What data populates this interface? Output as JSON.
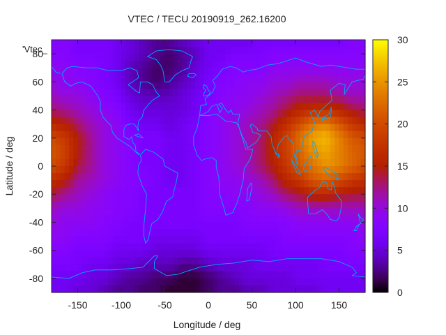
{
  "chart_data": {
    "type": "heatmap",
    "title": "VTEC / TECU 20190919_262.16200",
    "xlabel": "Longitude / deg",
    "ylabel": "Latitude / deg",
    "key_label": "'Vtec_",
    "xlim": [
      -180,
      180
    ],
    "ylim": [
      -90,
      90
    ],
    "x_ticks": [
      -150,
      -100,
      -50,
      0,
      50,
      100,
      150
    ],
    "y_ticks": [
      -80,
      -60,
      -40,
      -20,
      0,
      20,
      40,
      60,
      80
    ],
    "colorbar": {
      "min": 0,
      "max": 30,
      "ticks": [
        0,
        5,
        10,
        15,
        20,
        25,
        30
      ],
      "palette": "black-purple-red-orange-yellow"
    },
    "grid_lon": [
      -180,
      -165,
      -150,
      -135,
      -120,
      -105,
      -90,
      -75,
      -60,
      -45,
      -30,
      -15,
      0,
      15,
      30,
      45,
      60,
      75,
      90,
      105,
      120,
      135,
      150,
      165,
      180
    ],
    "grid_lat": [
      87.5,
      80,
      70,
      60,
      50,
      40,
      30,
      20,
      10,
      0,
      -10,
      -20,
      -30,
      -40,
      -50,
      -60,
      -70,
      -80,
      -87.5
    ],
    "vtec": [
      [
        8,
        8,
        7,
        7,
        7,
        6,
        5,
        4,
        3,
        3,
        4,
        5,
        6,
        6,
        6,
        6,
        7,
        7,
        7,
        7,
        7,
        7,
        7,
        8,
        8
      ],
      [
        8,
        8,
        7,
        7,
        7,
        6,
        5,
        4,
        3,
        2,
        3,
        4,
        6,
        6,
        7,
        7,
        7,
        8,
        8,
        8,
        8,
        8,
        8,
        8,
        8
      ],
      [
        9,
        9,
        8,
        8,
        7,
        6,
        4,
        3,
        2,
        2,
        3,
        5,
        6,
        7,
        8,
        8,
        8,
        9,
        9,
        9,
        9,
        9,
        9,
        9,
        9
      ],
      [
        10,
        9,
        9,
        8,
        7,
        6,
        4,
        3,
        2,
        3,
        4,
        5,
        7,
        8,
        8,
        9,
        9,
        10,
        10,
        11,
        11,
        11,
        10,
        10,
        10
      ],
      [
        11,
        10,
        10,
        9,
        8,
        7,
        5,
        4,
        4,
        4,
        5,
        6,
        7,
        8,
        9,
        9,
        10,
        11,
        12,
        13,
        13,
        13,
        12,
        11,
        11
      ],
      [
        13,
        12,
        11,
        10,
        9,
        8,
        6,
        5,
        5,
        5,
        5,
        6,
        8,
        9,
        9,
        10,
        11,
        12,
        14,
        16,
        17,
        17,
        16,
        14,
        13
      ],
      [
        16,
        15,
        13,
        11,
        10,
        9,
        7,
        6,
        6,
        5,
        6,
        7,
        8,
        9,
        10,
        11,
        12,
        14,
        17,
        20,
        23,
        24,
        21,
        18,
        16
      ],
      [
        20,
        18,
        15,
        12,
        10,
        9,
        8,
        7,
        7,
        6,
        6,
        7,
        8,
        9,
        10,
        11,
        13,
        16,
        19,
        23,
        26,
        27,
        24,
        21,
        20
      ],
      [
        21,
        19,
        15,
        12,
        10,
        9,
        8,
        7,
        7,
        6,
        6,
        7,
        8,
        9,
        10,
        11,
        13,
        16,
        19,
        22,
        25,
        26,
        24,
        22,
        21
      ],
      [
        20,
        18,
        14,
        12,
        10,
        9,
        8,
        7,
        7,
        6,
        6,
        7,
        8,
        9,
        10,
        11,
        13,
        15,
        18,
        21,
        23,
        25,
        24,
        22,
        20
      ],
      [
        17,
        15,
        12,
        11,
        10,
        9,
        8,
        8,
        7,
        6,
        6,
        7,
        8,
        9,
        9,
        10,
        11,
        13,
        16,
        18,
        21,
        22,
        20,
        18,
        17
      ],
      [
        14,
        12,
        11,
        10,
        9,
        8,
        8,
        7,
        7,
        7,
        7,
        7,
        8,
        8,
        9,
        9,
        10,
        11,
        13,
        14,
        16,
        16,
        15,
        14,
        14
      ],
      [
        11,
        10,
        10,
        9,
        9,
        8,
        8,
        7,
        7,
        7,
        7,
        7,
        8,
        8,
        8,
        8,
        9,
        9,
        10,
        11,
        11,
        11,
        11,
        11,
        11
      ],
      [
        10,
        9,
        9,
        9,
        8,
        8,
        7,
        7,
        7,
        7,
        7,
        7,
        7,
        7,
        7,
        8,
        8,
        8,
        8,
        9,
        9,
        9,
        9,
        9,
        10
      ],
      [
        9,
        9,
        8,
        8,
        8,
        7,
        7,
        7,
        6,
        6,
        6,
        6,
        7,
        7,
        7,
        7,
        7,
        7,
        8,
        8,
        8,
        8,
        8,
        8,
        9
      ],
      [
        8,
        8,
        7,
        7,
        7,
        6,
        6,
        6,
        5,
        5,
        5,
        5,
        6,
        6,
        6,
        6,
        6,
        7,
        7,
        7,
        7,
        7,
        7,
        8,
        8
      ],
      [
        7,
        7,
        7,
        6,
        6,
        5,
        5,
        4,
        4,
        4,
        3,
        3,
        4,
        5,
        5,
        5,
        6,
        6,
        6,
        6,
        6,
        7,
        7,
        7,
        7
      ],
      [
        6,
        6,
        6,
        5,
        5,
        4,
        3,
        3,
        2,
        2,
        1,
        1,
        2,
        3,
        4,
        5,
        5,
        5,
        5,
        6,
        6,
        6,
        6,
        6,
        6
      ],
      [
        6,
        6,
        5,
        5,
        4,
        3,
        3,
        2,
        2,
        1,
        1,
        1,
        2,
        3,
        3,
        4,
        4,
        5,
        5,
        5,
        5,
        6,
        6,
        6,
        6
      ]
    ]
  }
}
